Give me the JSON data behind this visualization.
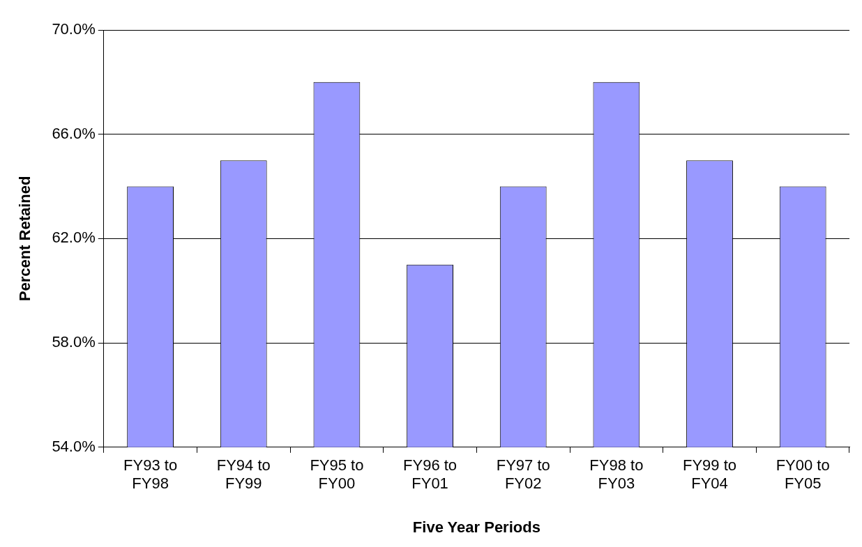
{
  "chart_data": {
    "type": "bar",
    "xlabel": "Five Year Periods",
    "ylabel": "Percent Retained",
    "categories": [
      "FY93 to FY98",
      "FY94 to FY99",
      "FY95 to FY00",
      "FY96 to FY01",
      "FY97 to FY02",
      "FY98 to FY03",
      "FY99 to FY04",
      "FY00 to FY05"
    ],
    "values": [
      64,
      65,
      68,
      61,
      64,
      68,
      65,
      64
    ],
    "color": "#9999ff",
    "ylim": [
      54,
      70
    ],
    "yticks": [
      {
        "value": 54,
        "label": "54.0%"
      },
      {
        "value": 58,
        "label": "58.0%"
      },
      {
        "value": 62,
        "label": "62.0%"
      },
      {
        "value": 66,
        "label": "66.0%"
      },
      {
        "value": 70,
        "label": "70.0%"
      }
    ],
    "grid": "y",
    "legend": false
  }
}
